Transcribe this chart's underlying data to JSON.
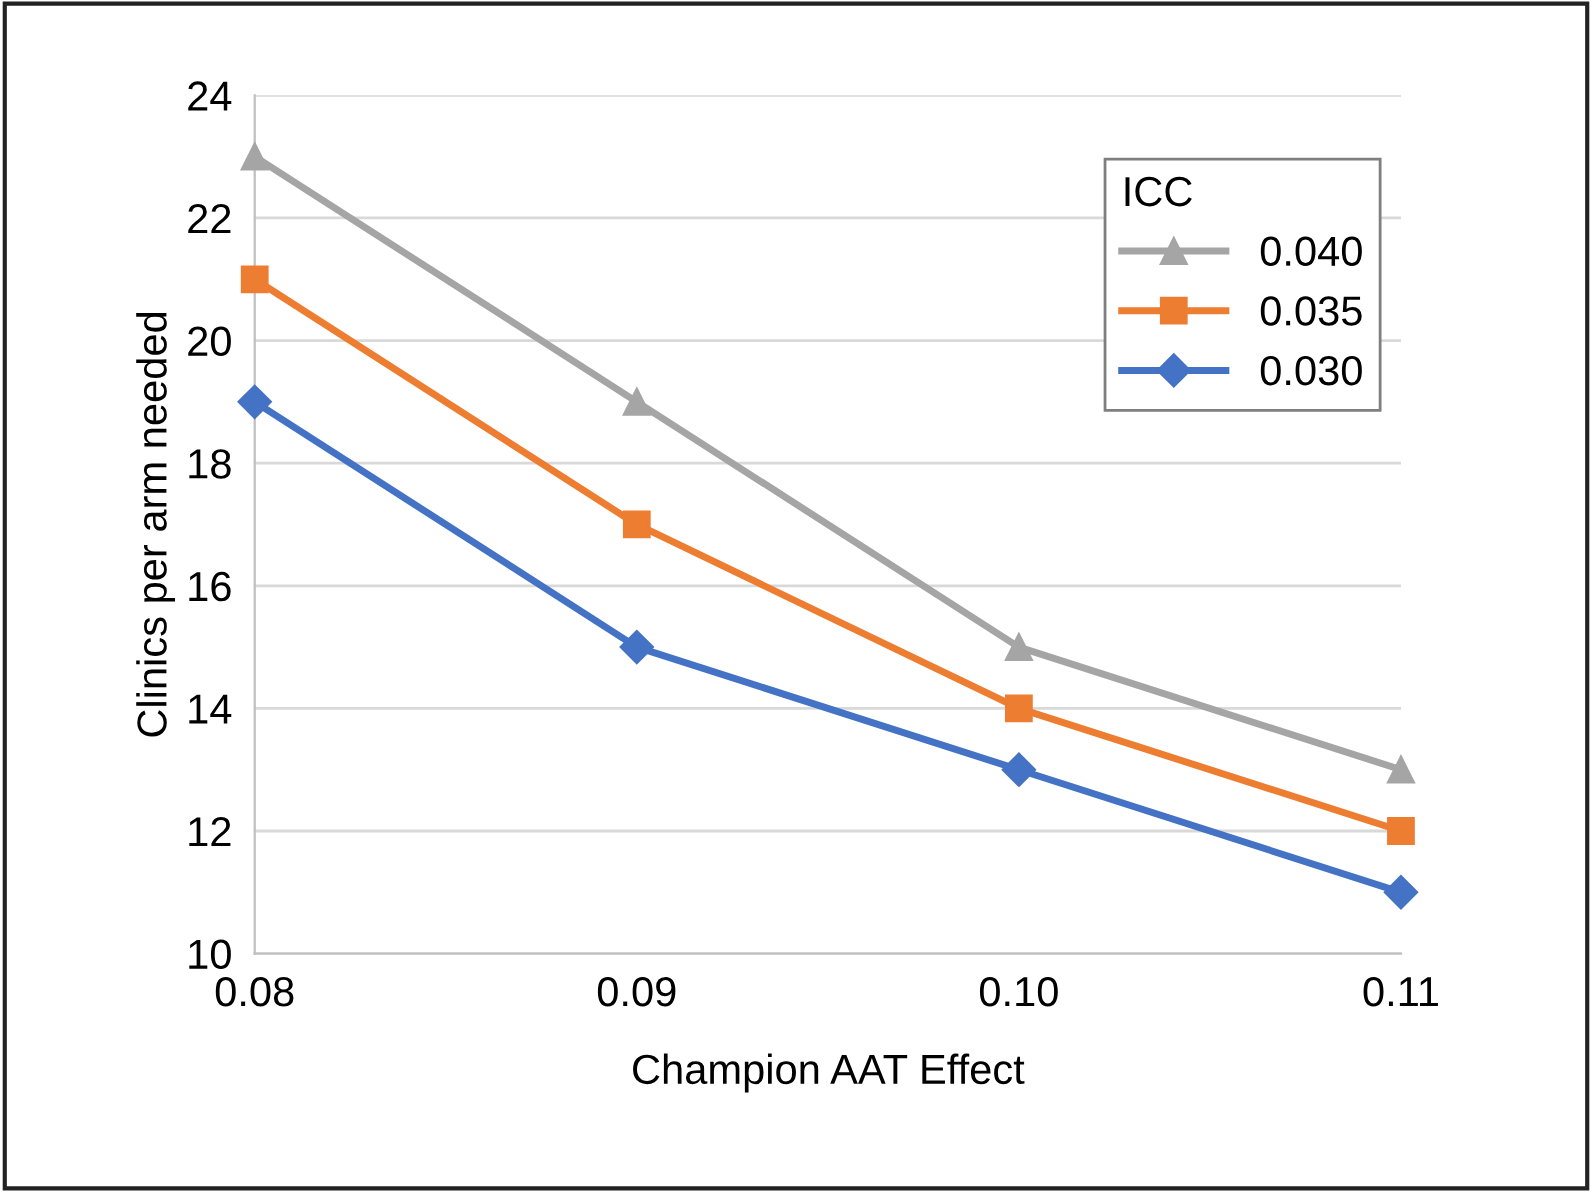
{
  "chart_data": {
    "type": "line",
    "xlabel": "Champion AAT Effect",
    "ylabel": "Clinics per arm needed",
    "legend_title": "ICC",
    "x": [
      0.08,
      0.09,
      0.1,
      0.11
    ],
    "series": [
      {
        "name": "0.040",
        "color": "#a5a5a5",
        "marker": "triangle",
        "values": [
          23,
          19,
          15,
          13
        ]
      },
      {
        "name": "0.035",
        "color": "#ed7d31",
        "marker": "square",
        "values": [
          21,
          17,
          14,
          12
        ]
      },
      {
        "name": "0.030",
        "color": "#4472c4",
        "marker": "diamond",
        "values": [
          19,
          15,
          13,
          11
        ]
      }
    ],
    "xlim": [
      0.08,
      0.11
    ],
    "xticks": [
      {
        "value": 0.08,
        "label": "0.08"
      },
      {
        "value": 0.09,
        "label": "0.09"
      },
      {
        "value": 0.1,
        "label": "0.10"
      },
      {
        "value": 0.11,
        "label": "0.11"
      }
    ],
    "ylim": [
      10,
      24
    ],
    "yticks": [
      10,
      12,
      14,
      16,
      18,
      20,
      22,
      24
    ],
    "grid": "y",
    "legend": "top right",
    "line_style": "solid"
  }
}
